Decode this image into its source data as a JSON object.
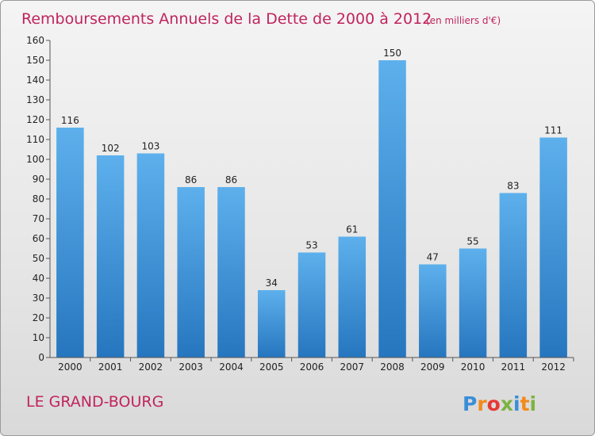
{
  "chart_data": {
    "type": "bar",
    "title": "Remboursements Annuels de la Dette de 2000 à 2012",
    "subtitle": "(en milliers d'€)",
    "categories": [
      "2000",
      "2001",
      "2002",
      "2003",
      "2004",
      "2005",
      "2006",
      "2007",
      "2008",
      "2009",
      "2010",
      "2011",
      "2012"
    ],
    "values": [
      116,
      102,
      103,
      86,
      86,
      34,
      53,
      61,
      150,
      47,
      55,
      83,
      111
    ],
    "ylim": [
      0,
      160
    ],
    "yticks": [
      0,
      10,
      20,
      30,
      40,
      50,
      60,
      70,
      80,
      90,
      100,
      110,
      120,
      130,
      140,
      150,
      160
    ],
    "grid": false,
    "bar_color": "#4a9fe0"
  },
  "footer": {
    "commune": "LE GRAND-BOURG",
    "logo_letters": [
      "P",
      "r",
      "o",
      "x",
      "i",
      "t",
      "i"
    ],
    "logo_colors": [
      "#3a8ed8",
      "#f28a1c",
      "#e53935",
      "#7cb342",
      "#3a8ed8",
      "#f28a1c",
      "#7cb342"
    ]
  }
}
